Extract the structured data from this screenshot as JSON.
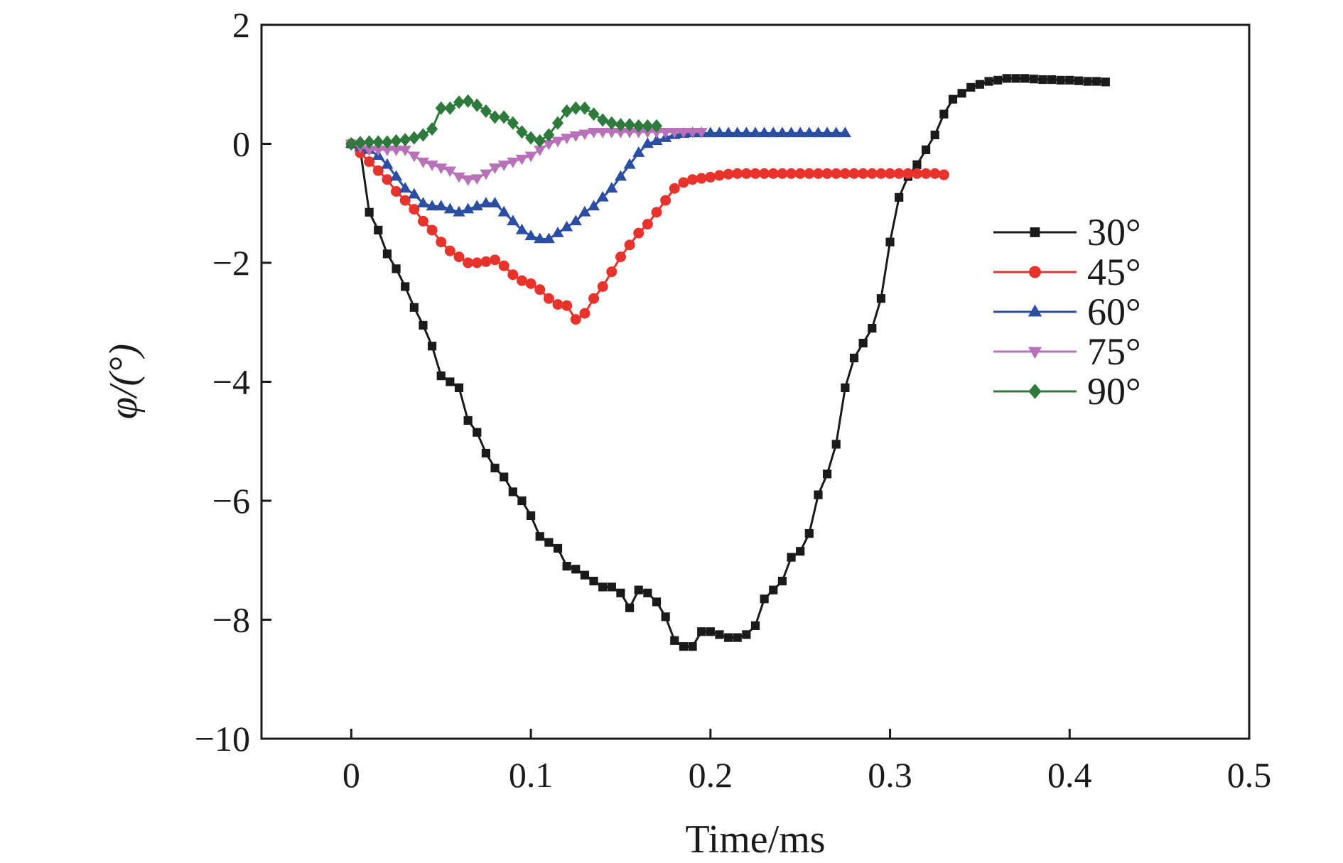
{
  "chart_data": {
    "type": "line",
    "xlabel": "Time/ms",
    "ylabel": "φ/(°)",
    "xlim": [
      -0.05,
      0.5
    ],
    "ylim": [
      -10,
      2
    ],
    "xticks": [
      0,
      0.1,
      0.2,
      0.3,
      0.4,
      0.5
    ],
    "xtick_labels": [
      "0",
      "0.1",
      "0.2",
      "0.3",
      "0.4",
      "0.5"
    ],
    "yticks": [
      -10,
      -8,
      -6,
      -4,
      -2,
      0,
      2
    ],
    "ytick_labels": [
      "−10",
      "−8",
      "−6",
      "−4",
      "−2",
      "0",
      "2"
    ],
    "grid": false,
    "legend_position": "right",
    "series": [
      {
        "name": "30°",
        "color": "#1a1a1a",
        "marker": "square",
        "points": [
          [
            0.0,
            0.0
          ],
          [
            0.005,
            -0.1
          ],
          [
            0.01,
            -1.15
          ],
          [
            0.015,
            -1.45
          ],
          [
            0.02,
            -1.85
          ],
          [
            0.025,
            -2.1
          ],
          [
            0.03,
            -2.4
          ],
          [
            0.035,
            -2.75
          ],
          [
            0.04,
            -3.05
          ],
          [
            0.045,
            -3.4
          ],
          [
            0.05,
            -3.9
          ],
          [
            0.055,
            -4.0
          ],
          [
            0.06,
            -4.1
          ],
          [
            0.065,
            -4.65
          ],
          [
            0.07,
            -4.85
          ],
          [
            0.075,
            -5.2
          ],
          [
            0.08,
            -5.45
          ],
          [
            0.085,
            -5.6
          ],
          [
            0.09,
            -5.85
          ],
          [
            0.095,
            -6.0
          ],
          [
            0.1,
            -6.25
          ],
          [
            0.105,
            -6.6
          ],
          [
            0.11,
            -6.7
          ],
          [
            0.115,
            -6.8
          ],
          [
            0.12,
            -7.1
          ],
          [
            0.125,
            -7.15
          ],
          [
            0.13,
            -7.25
          ],
          [
            0.135,
            -7.35
          ],
          [
            0.14,
            -7.45
          ],
          [
            0.145,
            -7.45
          ],
          [
            0.15,
            -7.55
          ],
          [
            0.155,
            -7.8
          ],
          [
            0.16,
            -7.5
          ],
          [
            0.165,
            -7.55
          ],
          [
            0.17,
            -7.7
          ],
          [
            0.175,
            -7.95
          ],
          [
            0.18,
            -8.35
          ],
          [
            0.185,
            -8.45
          ],
          [
            0.19,
            -8.45
          ],
          [
            0.195,
            -8.2
          ],
          [
            0.2,
            -8.2
          ],
          [
            0.205,
            -8.25
          ],
          [
            0.21,
            -8.3
          ],
          [
            0.215,
            -8.3
          ],
          [
            0.22,
            -8.25
          ],
          [
            0.225,
            -8.1
          ],
          [
            0.23,
            -7.65
          ],
          [
            0.235,
            -7.5
          ],
          [
            0.24,
            -7.35
          ],
          [
            0.245,
            -6.95
          ],
          [
            0.25,
            -6.85
          ],
          [
            0.255,
            -6.55
          ],
          [
            0.26,
            -5.9
          ],
          [
            0.265,
            -5.55
          ],
          [
            0.27,
            -5.05
          ],
          [
            0.275,
            -4.1
          ],
          [
            0.28,
            -3.6
          ],
          [
            0.285,
            -3.35
          ],
          [
            0.29,
            -3.1
          ],
          [
            0.295,
            -2.6
          ],
          [
            0.3,
            -1.65
          ],
          [
            0.305,
            -0.9
          ],
          [
            0.31,
            -0.55
          ],
          [
            0.315,
            -0.35
          ],
          [
            0.32,
            -0.1
          ],
          [
            0.325,
            0.15
          ],
          [
            0.33,
            0.5
          ],
          [
            0.335,
            0.75
          ],
          [
            0.34,
            0.85
          ],
          [
            0.345,
            0.95
          ],
          [
            0.35,
            1.0
          ],
          [
            0.355,
            1.05
          ],
          [
            0.36,
            1.07
          ],
          [
            0.365,
            1.1
          ],
          [
            0.37,
            1.1
          ],
          [
            0.375,
            1.1
          ],
          [
            0.38,
            1.09
          ],
          [
            0.385,
            1.08
          ],
          [
            0.39,
            1.08
          ],
          [
            0.395,
            1.07
          ],
          [
            0.4,
            1.07
          ],
          [
            0.405,
            1.06
          ],
          [
            0.41,
            1.05
          ],
          [
            0.415,
            1.05
          ],
          [
            0.42,
            1.04
          ]
        ]
      },
      {
        "name": "45°",
        "color": "#e8332d",
        "marker": "circle",
        "points": [
          [
            0.0,
            0.0
          ],
          [
            0.005,
            -0.15
          ],
          [
            0.01,
            -0.3
          ],
          [
            0.015,
            -0.45
          ],
          [
            0.02,
            -0.6
          ],
          [
            0.025,
            -0.8
          ],
          [
            0.03,
            -0.95
          ],
          [
            0.035,
            -1.1
          ],
          [
            0.04,
            -1.3
          ],
          [
            0.045,
            -1.45
          ],
          [
            0.05,
            -1.65
          ],
          [
            0.055,
            -1.8
          ],
          [
            0.06,
            -1.9
          ],
          [
            0.065,
            -2.0
          ],
          [
            0.07,
            -2.0
          ],
          [
            0.075,
            -1.98
          ],
          [
            0.08,
            -1.95
          ],
          [
            0.085,
            -2.05
          ],
          [
            0.09,
            -2.2
          ],
          [
            0.095,
            -2.3
          ],
          [
            0.1,
            -2.35
          ],
          [
            0.105,
            -2.45
          ],
          [
            0.11,
            -2.6
          ],
          [
            0.115,
            -2.7
          ],
          [
            0.12,
            -2.72
          ],
          [
            0.125,
            -2.95
          ],
          [
            0.13,
            -2.85
          ],
          [
            0.135,
            -2.6
          ],
          [
            0.14,
            -2.4
          ],
          [
            0.145,
            -2.15
          ],
          [
            0.15,
            -1.9
          ],
          [
            0.155,
            -1.7
          ],
          [
            0.16,
            -1.5
          ],
          [
            0.165,
            -1.35
          ],
          [
            0.17,
            -1.15
          ],
          [
            0.175,
            -0.95
          ],
          [
            0.18,
            -0.75
          ],
          [
            0.185,
            -0.65
          ],
          [
            0.19,
            -0.6
          ],
          [
            0.195,
            -0.58
          ],
          [
            0.2,
            -0.56
          ],
          [
            0.205,
            -0.53
          ],
          [
            0.21,
            -0.51
          ],
          [
            0.215,
            -0.5
          ],
          [
            0.22,
            -0.5
          ],
          [
            0.225,
            -0.5
          ],
          [
            0.23,
            -0.5
          ],
          [
            0.235,
            -0.5
          ],
          [
            0.24,
            -0.5
          ],
          [
            0.245,
            -0.5
          ],
          [
            0.25,
            -0.5
          ],
          [
            0.255,
            -0.5
          ],
          [
            0.26,
            -0.5
          ],
          [
            0.265,
            -0.5
          ],
          [
            0.27,
            -0.5
          ],
          [
            0.275,
            -0.5
          ],
          [
            0.28,
            -0.5
          ],
          [
            0.285,
            -0.5
          ],
          [
            0.29,
            -0.5
          ],
          [
            0.295,
            -0.5
          ],
          [
            0.3,
            -0.5
          ],
          [
            0.305,
            -0.5
          ],
          [
            0.31,
            -0.5
          ],
          [
            0.315,
            -0.5
          ],
          [
            0.32,
            -0.5
          ],
          [
            0.325,
            -0.5
          ],
          [
            0.33,
            -0.52
          ]
        ]
      },
      {
        "name": "60°",
        "color": "#2b4ea2",
        "marker": "triangle-up",
        "points": [
          [
            0.0,
            0.0
          ],
          [
            0.005,
            -0.05
          ],
          [
            0.01,
            -0.1
          ],
          [
            0.015,
            -0.2
          ],
          [
            0.02,
            -0.35
          ],
          [
            0.025,
            -0.55
          ],
          [
            0.03,
            -0.75
          ],
          [
            0.035,
            -0.85
          ],
          [
            0.04,
            -1.0
          ],
          [
            0.045,
            -1.05
          ],
          [
            0.05,
            -1.05
          ],
          [
            0.055,
            -1.1
          ],
          [
            0.06,
            -1.15
          ],
          [
            0.065,
            -1.1
          ],
          [
            0.07,
            -1.05
          ],
          [
            0.075,
            -1.0
          ],
          [
            0.08,
            -1.0
          ],
          [
            0.085,
            -1.15
          ],
          [
            0.09,
            -1.3
          ],
          [
            0.095,
            -1.45
          ],
          [
            0.1,
            -1.55
          ],
          [
            0.105,
            -1.6
          ],
          [
            0.11,
            -1.6
          ],
          [
            0.115,
            -1.5
          ],
          [
            0.12,
            -1.4
          ],
          [
            0.125,
            -1.3
          ],
          [
            0.13,
            -1.15
          ],
          [
            0.135,
            -1.05
          ],
          [
            0.14,
            -0.9
          ],
          [
            0.145,
            -0.75
          ],
          [
            0.15,
            -0.55
          ],
          [
            0.155,
            -0.35
          ],
          [
            0.16,
            -0.15
          ],
          [
            0.165,
            0.0
          ],
          [
            0.17,
            0.05
          ],
          [
            0.175,
            0.1
          ],
          [
            0.18,
            0.15
          ],
          [
            0.185,
            0.17
          ],
          [
            0.19,
            0.18
          ],
          [
            0.195,
            0.18
          ],
          [
            0.2,
            0.18
          ],
          [
            0.205,
            0.18
          ],
          [
            0.21,
            0.18
          ],
          [
            0.215,
            0.18
          ],
          [
            0.22,
            0.18
          ],
          [
            0.225,
            0.18
          ],
          [
            0.23,
            0.18
          ],
          [
            0.235,
            0.18
          ],
          [
            0.24,
            0.18
          ],
          [
            0.245,
            0.18
          ],
          [
            0.25,
            0.18
          ],
          [
            0.255,
            0.18
          ],
          [
            0.26,
            0.18
          ],
          [
            0.265,
            0.18
          ],
          [
            0.27,
            0.18
          ],
          [
            0.275,
            0.18
          ]
        ]
      },
      {
        "name": "75°",
        "color": "#b870b8",
        "marker": "triangle-down",
        "points": [
          [
            0.0,
            0.0
          ],
          [
            0.005,
            -0.05
          ],
          [
            0.01,
            -0.1
          ],
          [
            0.015,
            -0.1
          ],
          [
            0.02,
            -0.1
          ],
          [
            0.025,
            -0.1
          ],
          [
            0.03,
            -0.1
          ],
          [
            0.035,
            -0.2
          ],
          [
            0.04,
            -0.3
          ],
          [
            0.045,
            -0.35
          ],
          [
            0.05,
            -0.4
          ],
          [
            0.055,
            -0.45
          ],
          [
            0.06,
            -0.55
          ],
          [
            0.065,
            -0.6
          ],
          [
            0.07,
            -0.58
          ],
          [
            0.075,
            -0.5
          ],
          [
            0.08,
            -0.4
          ],
          [
            0.085,
            -0.35
          ],
          [
            0.09,
            -0.3
          ],
          [
            0.095,
            -0.25
          ],
          [
            0.1,
            -0.2
          ],
          [
            0.105,
            -0.1
          ],
          [
            0.11,
            0.0
          ],
          [
            0.115,
            0.05
          ],
          [
            0.12,
            0.1
          ],
          [
            0.125,
            0.14
          ],
          [
            0.13,
            0.17
          ],
          [
            0.135,
            0.2
          ],
          [
            0.14,
            0.2
          ],
          [
            0.145,
            0.2
          ],
          [
            0.15,
            0.2
          ],
          [
            0.155,
            0.2
          ],
          [
            0.16,
            0.2
          ],
          [
            0.165,
            0.2
          ],
          [
            0.17,
            0.2
          ],
          [
            0.175,
            0.2
          ],
          [
            0.18,
            0.2
          ],
          [
            0.185,
            0.2
          ],
          [
            0.19,
            0.2
          ],
          [
            0.195,
            0.2
          ]
        ]
      },
      {
        "name": "90°",
        "color": "#2e7a3c",
        "marker": "diamond",
        "points": [
          [
            0.0,
            0.0
          ],
          [
            0.005,
            0.02
          ],
          [
            0.01,
            0.03
          ],
          [
            0.015,
            0.03
          ],
          [
            0.02,
            0.03
          ],
          [
            0.025,
            0.05
          ],
          [
            0.03,
            0.07
          ],
          [
            0.035,
            0.1
          ],
          [
            0.04,
            0.15
          ],
          [
            0.045,
            0.25
          ],
          [
            0.05,
            0.6
          ],
          [
            0.055,
            0.6
          ],
          [
            0.06,
            0.7
          ],
          [
            0.065,
            0.72
          ],
          [
            0.07,
            0.65
          ],
          [
            0.075,
            0.55
          ],
          [
            0.08,
            0.45
          ],
          [
            0.085,
            0.45
          ],
          [
            0.09,
            0.35
          ],
          [
            0.095,
            0.2
          ],
          [
            0.1,
            0.1
          ],
          [
            0.105,
            0.05
          ],
          [
            0.11,
            0.15
          ],
          [
            0.115,
            0.35
          ],
          [
            0.12,
            0.55
          ],
          [
            0.125,
            0.6
          ],
          [
            0.13,
            0.6
          ],
          [
            0.135,
            0.5
          ],
          [
            0.14,
            0.4
          ],
          [
            0.145,
            0.35
          ],
          [
            0.15,
            0.32
          ],
          [
            0.155,
            0.32
          ],
          [
            0.16,
            0.3
          ],
          [
            0.165,
            0.3
          ],
          [
            0.17,
            0.3
          ]
        ]
      }
    ]
  }
}
